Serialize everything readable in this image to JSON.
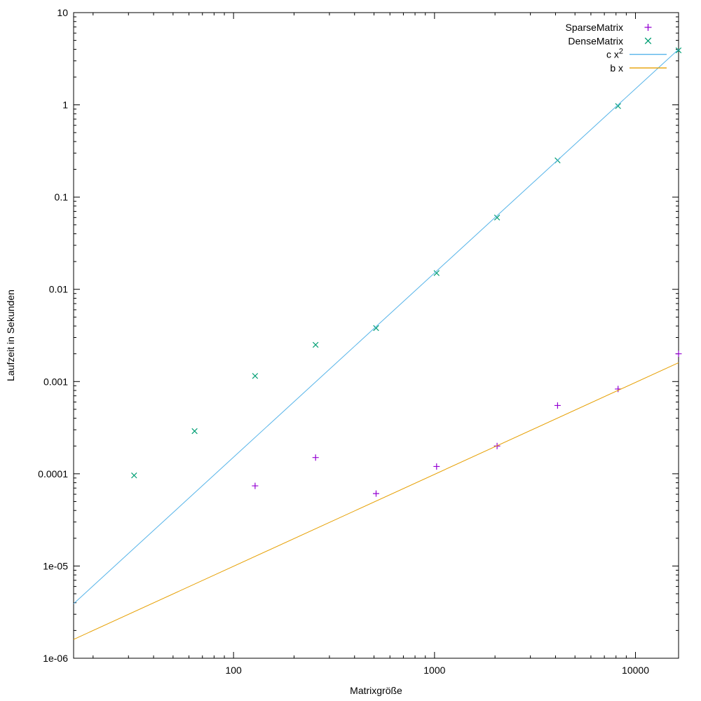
{
  "chart_data": {
    "type": "scatter",
    "title": "",
    "xlabel": "Matrixgröße",
    "ylabel": "Laufzeit in Sekunden",
    "grid": false,
    "legend_position": "top-right-inside",
    "x_axis": {
      "scale": "log",
      "min": 16,
      "max": 16384,
      "major_ticks": [
        {
          "v": 100,
          "label": "100"
        },
        {
          "v": 1000,
          "label": "1000"
        },
        {
          "v": 10000,
          "label": "10000"
        }
      ]
    },
    "y_axis": {
      "scale": "log",
      "min": 1e-06,
      "max": 10,
      "major_ticks": [
        {
          "v": 1e-06,
          "label": "1e-06"
        },
        {
          "v": 1e-05,
          "label": "1e-05"
        },
        {
          "v": 0.0001,
          "label": "0.0001"
        },
        {
          "v": 0.001,
          "label": "0.001"
        },
        {
          "v": 0.01,
          "label": "0.01"
        },
        {
          "v": 0.1,
          "label": "0.1"
        },
        {
          "v": 1,
          "label": "1"
        },
        {
          "v": 10,
          "label": "10"
        }
      ]
    },
    "series": [
      {
        "name": "SparseMatrix",
        "type": "points",
        "marker": "plus",
        "color": "#9400d3",
        "x": [
          128,
          256,
          512,
          1024,
          2048,
          4096,
          8192,
          16384
        ],
        "y": [
          7.4e-05,
          0.00015,
          6.1e-05,
          0.00012,
          0.0002,
          0.00055,
          0.00083,
          0.002
        ]
      },
      {
        "name": "DenseMatrix",
        "type": "points",
        "marker": "cross",
        "color": "#009e73",
        "x": [
          32,
          64,
          128,
          256,
          512,
          1024,
          2048,
          4096,
          8192,
          16384
        ],
        "y": [
          9.6e-05,
          0.00029,
          0.00115,
          0.0025,
          0.0038,
          0.015,
          0.06,
          0.25,
          0.97,
          3.9
        ]
      },
      {
        "name": "c x^2",
        "type": "line",
        "color": "#56b4e9",
        "x": [
          16,
          16384
        ],
        "y": [
          3.9e-06,
          4.0
        ]
      },
      {
        "name": "b x",
        "type": "line",
        "color": "#e69f00",
        "x": [
          16,
          16384
        ],
        "y": [
          1.6e-06,
          0.0016
        ]
      }
    ]
  }
}
